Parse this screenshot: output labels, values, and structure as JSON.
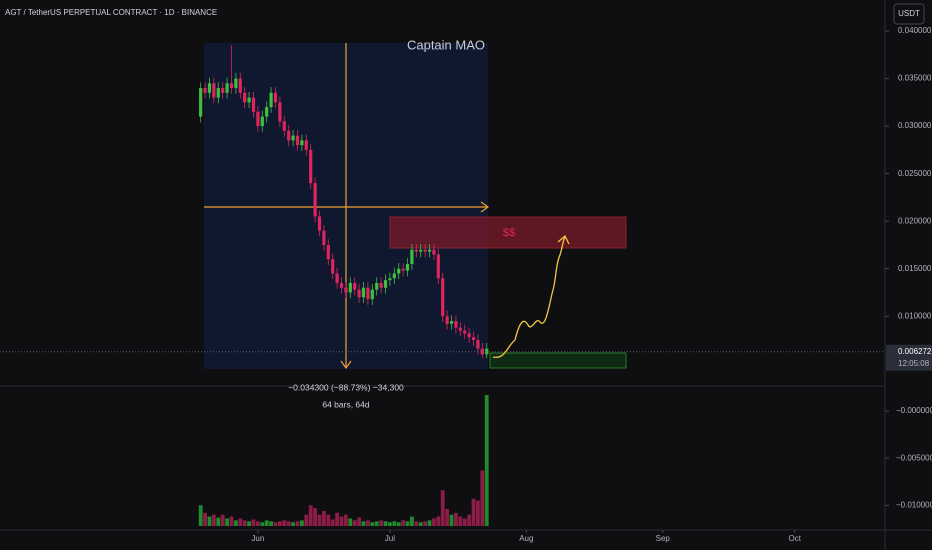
{
  "header": {
    "title": "AGT / TetherUS PERPETUAL CONTRACT · 1D · BINANCE",
    "currency_button": "USDT"
  },
  "chart_data": {
    "type": "candlestick",
    "x": [
      -13,
      -12,
      -11,
      -10,
      -9,
      -8,
      -7,
      -6,
      -5,
      -4,
      -3,
      -2,
      -1,
      0,
      1,
      2,
      3,
      4,
      5,
      6,
      7,
      8,
      9,
      10,
      11,
      12,
      13,
      14,
      15,
      16,
      17,
      18,
      19,
      20,
      21,
      22,
      23,
      24,
      25,
      26,
      27,
      28,
      29,
      30,
      31,
      32,
      33,
      34,
      35,
      36,
      37,
      38,
      39,
      40,
      41,
      42,
      43,
      44,
      45,
      46,
      47,
      48,
      49,
      50,
      51,
      52
    ],
    "open": [
      0.031,
      0.034,
      0.0335,
      0.0345,
      0.033,
      0.034,
      0.0335,
      0.0345,
      0.034,
      0.035,
      0.0335,
      0.0325,
      0.033,
      0.0315,
      0.03,
      0.031,
      0.032,
      0.0335,
      0.0325,
      0.0305,
      0.0295,
      0.0285,
      0.029,
      0.028,
      0.0285,
      0.0275,
      0.024,
      0.0205,
      0.019,
      0.0175,
      0.016,
      0.0145,
      0.0135,
      0.013,
      0.0125,
      0.0135,
      0.0128,
      0.012,
      0.013,
      0.0118,
      0.0128,
      0.0135,
      0.013,
      0.0138,
      0.014,
      0.0145,
      0.015,
      0.0148,
      0.0155,
      0.017,
      0.0168,
      0.017,
      0.0168,
      0.017,
      0.0165,
      0.014,
      0.01,
      0.0092,
      0.0095,
      0.0088,
      0.0085,
      0.0082,
      0.0078,
      0.0075,
      0.0066,
      0.006
    ],
    "high": [
      0.0346,
      0.0346,
      0.0351,
      0.0351,
      0.0346,
      0.0346,
      0.0351,
      0.0385,
      0.0356,
      0.0356,
      0.0341,
      0.0336,
      0.0336,
      0.0321,
      0.0316,
      0.0326,
      0.0341,
      0.0341,
      0.0331,
      0.0311,
      0.0301,
      0.0296,
      0.0296,
      0.0291,
      0.0291,
      0.0281,
      0.0246,
      0.0211,
      0.0196,
      0.0181,
      0.0166,
      0.0151,
      0.0141,
      0.0136,
      0.0141,
      0.0141,
      0.0134,
      0.0136,
      0.0136,
      0.0134,
      0.0141,
      0.0141,
      0.0144,
      0.0146,
      0.0151,
      0.0156,
      0.0156,
      0.0161,
      0.0176,
      0.0176,
      0.0176,
      0.0176,
      0.0176,
      0.0176,
      0.0171,
      0.0146,
      0.0106,
      0.0101,
      0.0101,
      0.0094,
      0.0091,
      0.0088,
      0.0084,
      0.0081,
      0.0072,
      0.0072
    ],
    "low": [
      0.0304,
      0.0329,
      0.0329,
      0.0324,
      0.0324,
      0.0329,
      0.0329,
      0.0334,
      0.0334,
      0.0329,
      0.0319,
      0.0319,
      0.0309,
      0.0294,
      0.0294,
      0.0304,
      0.0314,
      0.0319,
      0.0299,
      0.0289,
      0.0279,
      0.0279,
      0.0274,
      0.0274,
      0.0269,
      0.0234,
      0.0199,
      0.0184,
      0.0169,
      0.0154,
      0.0139,
      0.0129,
      0.0124,
      0.0119,
      0.0119,
      0.0122,
      0.0114,
      0.0114,
      0.0112,
      0.0112,
      0.0122,
      0.0124,
      0.0124,
      0.0132,
      0.0134,
      0.0139,
      0.0142,
      0.0142,
      0.0149,
      0.0162,
      0.0162,
      0.0162,
      0.0162,
      0.0159,
      0.0134,
      0.0094,
      0.0086,
      0.0086,
      0.0082,
      0.0079,
      0.0076,
      0.0072,
      0.0069,
      0.006,
      0.0056,
      0.0056
    ],
    "close": [
      0.034,
      0.0335,
      0.0345,
      0.033,
      0.034,
      0.0335,
      0.0345,
      0.034,
      0.035,
      0.0335,
      0.0325,
      0.033,
      0.0315,
      0.03,
      0.031,
      0.032,
      0.0335,
      0.0325,
      0.0305,
      0.0295,
      0.0285,
      0.029,
      0.028,
      0.0285,
      0.0275,
      0.024,
      0.0205,
      0.019,
      0.0175,
      0.016,
      0.0145,
      0.0135,
      0.013,
      0.0125,
      0.0135,
      0.0128,
      0.012,
      0.013,
      0.0118,
      0.0128,
      0.0135,
      0.013,
      0.0138,
      0.014,
      0.0145,
      0.015,
      0.0148,
      0.0155,
      0.017,
      0.0168,
      0.017,
      0.0168,
      0.017,
      0.0165,
      0.014,
      0.01,
      0.0092,
      0.0095,
      0.0088,
      0.0085,
      0.0082,
      0.0078,
      0.0075,
      0.0066,
      0.006,
      0.0066
    ],
    "up_color": "#3fbf3f",
    "down_color": "#e0245e",
    "xlim": [
      -58.6,
      142.5
    ],
    "xticks": [
      {
        "value": 0,
        "label": "Jun"
      },
      {
        "value": 30,
        "label": "Jul"
      },
      {
        "value": 61,
        "label": "Aug"
      },
      {
        "value": 92,
        "label": "Sep"
      },
      {
        "value": 122,
        "label": "Oct"
      }
    ],
    "ylim": [
      0.0033,
      0.04
    ],
    "yticks": [
      {
        "value": 0.04,
        "label": "0.040000"
      },
      {
        "value": 0.035,
        "label": "0.035000"
      },
      {
        "value": 0.03,
        "label": "0.030000"
      },
      {
        "value": 0.025,
        "label": "0.025000"
      },
      {
        "value": 0.02,
        "label": "0.020000"
      },
      {
        "value": 0.015,
        "label": "0.015000"
      },
      {
        "value": 0.01,
        "label": "0.010000"
      }
    ],
    "last_price": {
      "value": 0.006272,
      "label": "0.006272"
    },
    "countdown": "12:05:08",
    "volume": {
      "values": [
        -0.01,
        -0.0108,
        -0.0112,
        -0.011,
        -0.0113,
        -0.011,
        -0.0114,
        -0.0112,
        -0.0116,
        -0.0114,
        -0.0116,
        -0.0117,
        -0.0115,
        -0.0117,
        -0.0118,
        -0.0116,
        -0.0117,
        -0.0118,
        -0.0117,
        -0.0116,
        -0.0117,
        -0.0118,
        -0.0117,
        -0.0116,
        -0.011,
        -0.01,
        -0.0103,
        -0.011,
        -0.0106,
        -0.011,
        -0.0115,
        -0.0108,
        -0.0112,
        -0.011,
        -0.0114,
        -0.0116,
        -0.0113,
        -0.0117,
        -0.0116,
        -0.0118,
        -0.0117,
        -0.0116,
        -0.0117,
        -0.0118,
        -0.0117,
        -0.0118,
        -0.0116,
        -0.0117,
        -0.0112,
        -0.0117,
        -0.0118,
        -0.0117,
        -0.0116,
        -0.0114,
        -0.0112,
        -0.0084,
        -0.0104,
        -0.011,
        -0.0108,
        -0.0112,
        -0.0114,
        -0.011,
        -0.0093,
        -0.0095,
        -0.0063,
        0.0017
      ],
      "ylim": [
        -0.0122,
        0.0017
      ],
      "yticks": [
        {
          "value": 0,
          "label": "−0.000000"
        },
        {
          "value": -0.005,
          "label": "−0.005000"
        },
        {
          "value": -0.01,
          "label": "−0.010000"
        }
      ],
      "up_color": "#1f8a2e",
      "down_color": "#8c1d47"
    },
    "annotations": {
      "watermark": "Captain MAO",
      "target": "$$",
      "measure_change": "−0.034300 (−88.73%) −34,300",
      "measure_span": "64 bars, 64d"
    }
  }
}
